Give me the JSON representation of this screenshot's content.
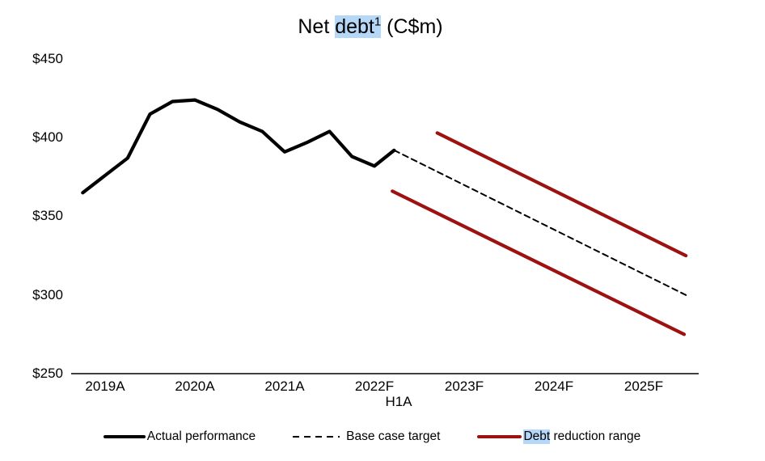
{
  "title": {
    "pre": "Net ",
    "highlight": "debt",
    "sup": "1",
    "post": " (C$m)"
  },
  "colors": {
    "actual_line": "#000000",
    "target_line": "#000000",
    "range_line": "#9e1111",
    "text_highlight": "#b5d7f8",
    "axis": "#000000"
  },
  "legend": [
    {
      "label": "Actual performance",
      "style": "solid-black"
    },
    {
      "label": "Base case target",
      "style": "dashed-black"
    },
    {
      "label": "Debt reduction range",
      "highlight": "Debt",
      "rest": " reduction range",
      "style": "solid-red"
    }
  ],
  "chart_data": {
    "type": "line",
    "title": "Net debt (C$m)",
    "xlabel": "",
    "ylabel": "",
    "ylim": [
      250,
      450
    ],
    "xlim": [
      2018.75,
      2026.1
    ],
    "grid": false,
    "legend_position": "bottom",
    "ytick_labels": [
      "$450",
      "$400",
      "$350",
      "$300",
      "$250"
    ],
    "ytick_values": [
      450,
      400,
      350,
      300,
      250
    ],
    "xtick_labels": [
      "2019A",
      "2020A",
      "2021A",
      "2022F",
      "2023F",
      "2024F",
      "2025F"
    ],
    "xtick_sublabel": "H1A",
    "xtick_sublabel_under": "2022F",
    "series": [
      {
        "name": "Actual performance",
        "style": "solid-black",
        "x": [
          2019.25,
          2019.5,
          2019.75,
          2020.0,
          2020.25,
          2020.5,
          2020.75,
          2021.0,
          2021.25,
          2021.5,
          2021.75,
          2022.0,
          2022.25,
          2022.5,
          2022.72
        ],
        "values": [
          365,
          376,
          387,
          415,
          423,
          424,
          418,
          410,
          404,
          391,
          397,
          404,
          388,
          382,
          392
        ]
      },
      {
        "name": "Base case target",
        "style": "dashed-black",
        "x": [
          2022.72,
          2025.97
        ],
        "values": [
          392,
          300
        ]
      },
      {
        "name": "Debt reduction range (upper)",
        "style": "solid-red",
        "x": [
          2023.2,
          2025.97
        ],
        "values": [
          403,
          325
        ]
      },
      {
        "name": "Debt reduction range (lower)",
        "style": "solid-red",
        "x": [
          2022.7,
          2025.95
        ],
        "values": [
          366,
          275
        ]
      }
    ]
  }
}
